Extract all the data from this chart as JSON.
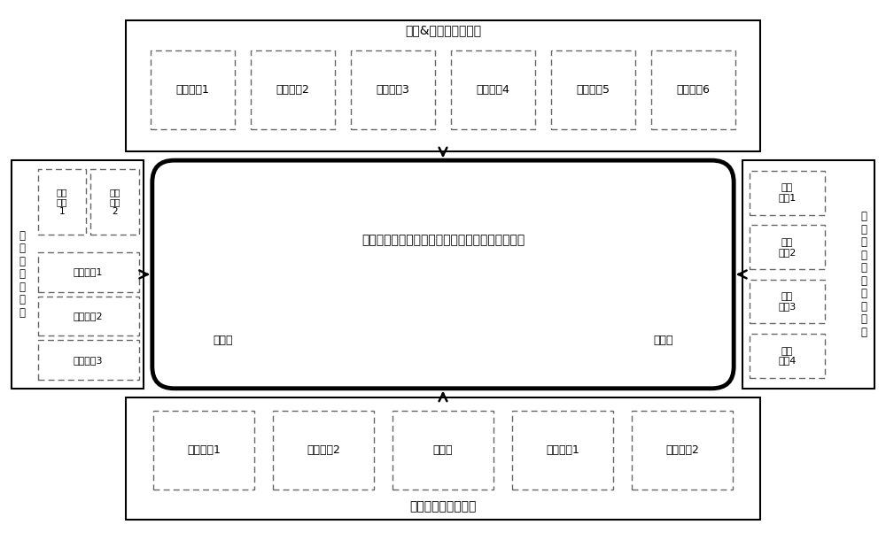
{
  "bg_color": "#ffffff",
  "title_top": "业务&决策目标视图层",
  "title_bottom": "当前参数状态视图层",
  "title_left": "辅助决策视图层",
  "title_right_col1": "目\n标\n点\n视\n频\n监\n控\n视\n图\n层",
  "center_label": "驾驶舱全景显示图层（多维视图自动重组和叠加）",
  "decision_items": [
    "决策目标1",
    "决策目标2",
    "决策目标3",
    "决策目标4",
    "决策目标5",
    "决策目标6"
  ],
  "status_items": [
    "当前状态1",
    "当前状态2",
    "仪表盘",
    "备用状态1",
    "备用状态2"
  ],
  "left_top_items": [
    "可控\n信息\n1",
    "可态\n信息\n2"
  ],
  "left_bottom_items": [
    "预测信息1",
    "预测信息2",
    "预测态势3"
  ],
  "right_inner_items": [
    "视频\n监控1",
    "视频\n监控2",
    "视频\n监控3",
    "视频\n监控4"
  ],
  "float_items": [
    "悬浮件",
    "悬浮件"
  ],
  "left_vert_label": "辅\n助\n决\n策\n视\n图\n层"
}
